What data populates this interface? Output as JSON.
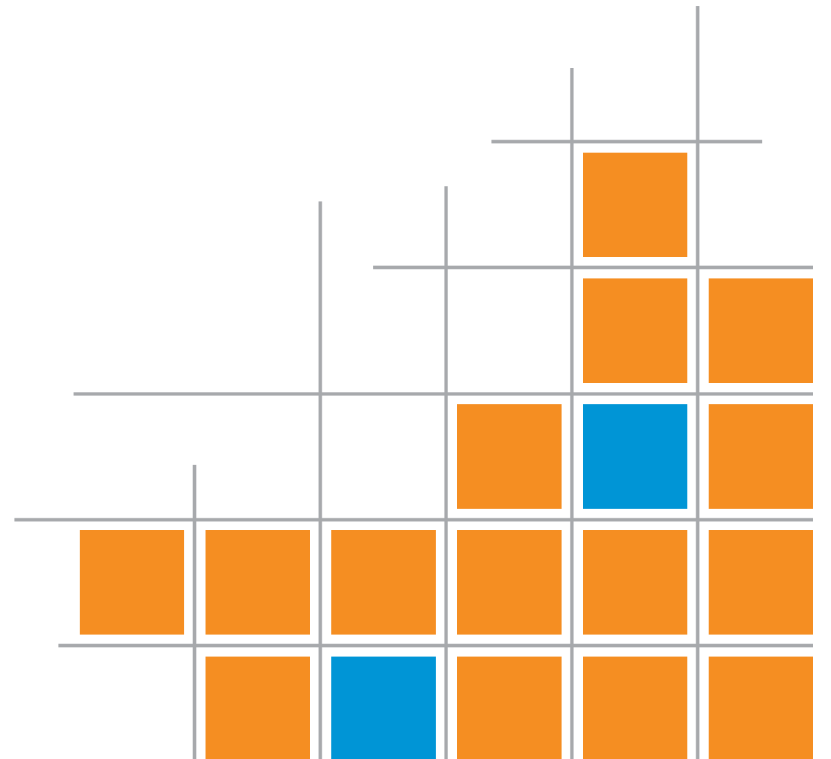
{
  "colors": {
    "background": "#ffffff",
    "grid_line": "#a7a9ac",
    "orange": "#f58e22",
    "blue": "#0095d6"
  },
  "cells": [
    {
      "row": 0,
      "col": 4,
      "color": "orange"
    },
    {
      "row": 1,
      "col": 4,
      "color": "orange"
    },
    {
      "row": 1,
      "col": 5,
      "color": "orange"
    },
    {
      "row": 2,
      "col": 3,
      "color": "orange"
    },
    {
      "row": 2,
      "col": 4,
      "color": "blue"
    },
    {
      "row": 2,
      "col": 5,
      "color": "orange"
    },
    {
      "row": 3,
      "col": 0,
      "color": "orange"
    },
    {
      "row": 3,
      "col": 1,
      "color": "orange"
    },
    {
      "row": 3,
      "col": 2,
      "color": "orange"
    },
    {
      "row": 3,
      "col": 3,
      "color": "orange"
    },
    {
      "row": 3,
      "col": 4,
      "color": "orange"
    },
    {
      "row": 3,
      "col": 5,
      "color": "orange"
    },
    {
      "row": 4,
      "col": 1,
      "color": "orange"
    },
    {
      "row": 4,
      "col": 2,
      "color": "blue"
    },
    {
      "row": 4,
      "col": 3,
      "color": "orange"
    },
    {
      "row": 4,
      "col": 4,
      "color": "orange"
    },
    {
      "row": 4,
      "col": 5,
      "color": "orange"
    }
  ]
}
